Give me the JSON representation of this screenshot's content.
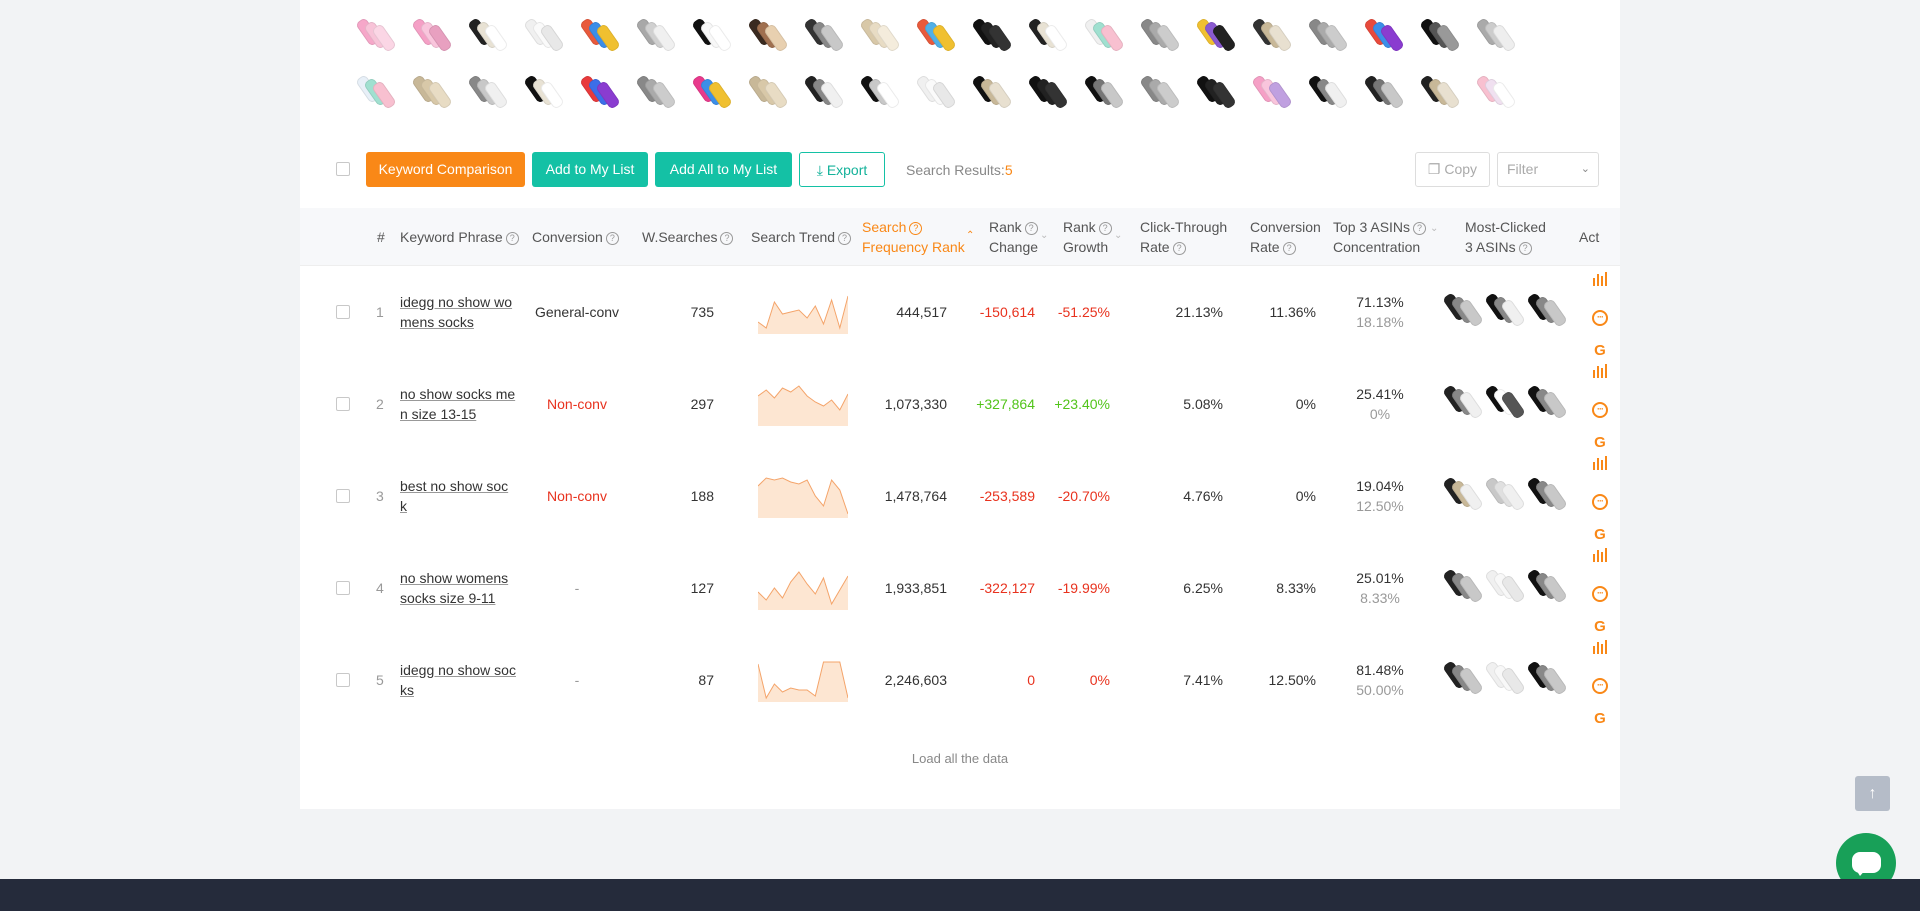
{
  "toolbar": {
    "keyword_comparison": "Keyword Comparison",
    "add_to_list": "Add to My List",
    "add_all_to_list": "Add All to My List",
    "export": "Export",
    "search_results_label": "Search Results:",
    "search_results_count": "5",
    "copy": "Copy",
    "filter_placeholder": "Filter"
  },
  "thumbnails": {
    "row1": [
      [
        "#f6a7c9",
        "#f8c3d8",
        "#fbd6e5"
      ],
      [
        "#f5a0c6",
        "#f9c5dc",
        "#e8a0c0"
      ],
      [
        "#222222",
        "#e8e2d4",
        "#ffffff"
      ],
      [
        "#f0f0f0",
        "#fafafa",
        "#e8e8e8"
      ],
      [
        "#e85a3c",
        "#3c8ee8",
        "#f0c030"
      ],
      [
        "#a8a8a8",
        "#d0d0d0",
        "#f0f0f0"
      ],
      [
        "#111111",
        "#f8f8f8",
        "#ffffff"
      ],
      [
        "#3a2a20",
        "#a07050",
        "#e8d0b0"
      ],
      [
        "#333333",
        "#888888",
        "#c8c8c8"
      ],
      [
        "#d8c8a8",
        "#e8dcc4",
        "#f4ecdc"
      ],
      [
        "#e85a3c",
        "#50b0e8",
        "#f0c030"
      ],
      [
        "#111111",
        "#222222",
        "#333333"
      ],
      [
        "#222222",
        "#e8e2d4",
        "#ffffff"
      ],
      [
        "#f0f0f0",
        "#a0e0d0",
        "#f8c0d0"
      ],
      [
        "#888888",
        "#aaaaaa",
        "#cccccc"
      ],
      [
        "#f0c030",
        "#8a5ad0",
        "#222222"
      ],
      [
        "#333333",
        "#c8b898",
        "#e8e0d0"
      ],
      [
        "#888888",
        "#aaaaaa",
        "#cccccc"
      ],
      [
        "#e84a3c",
        "#3c8ee8",
        "#8a3cd0"
      ],
      [
        "#111111",
        "#555555",
        "#999999"
      ],
      [
        "#aaaaaa",
        "#cccccc",
        "#eeeeee"
      ]
    ],
    "row2": [
      [
        "#e8f0f8",
        "#a0e0d0",
        "#f8c0d0"
      ],
      [
        "#c8b898",
        "#d8c8a8",
        "#e8dcc4"
      ],
      [
        "#888888",
        "#c8c8c8",
        "#f0f0f0"
      ],
      [
        "#111111",
        "#e8e2d4",
        "#ffffff"
      ],
      [
        "#e83a3c",
        "#3c6ee8",
        "#8a3cd0"
      ],
      [
        "#888888",
        "#aaaaaa",
        "#cccccc"
      ],
      [
        "#e83a8c",
        "#3c8ee8",
        "#f0c030"
      ],
      [
        "#c8b898",
        "#d8c8a8",
        "#e8dcc4"
      ],
      [
        "#222222",
        "#888888",
        "#f0f0f0"
      ],
      [
        "#111111",
        "#c8c8c8",
        "#ffffff"
      ],
      [
        "#f0f0f0",
        "#fafafa",
        "#e8e8e8"
      ],
      [
        "#111111",
        "#c8b898",
        "#e8e0d0"
      ],
      [
        "#111111",
        "#222222",
        "#333333"
      ],
      [
        "#111111",
        "#777777",
        "#c8c8c8"
      ],
      [
        "#888888",
        "#aaaaaa",
        "#cccccc"
      ],
      [
        "#111111",
        "#222222",
        "#333333"
      ],
      [
        "#f5a0c6",
        "#f9c5dc",
        "#c0a0e0"
      ],
      [
        "#111111",
        "#888888",
        "#f0f0f0"
      ],
      [
        "#222222",
        "#777777",
        "#c8c8c8"
      ],
      [
        "#222222",
        "#c8b898",
        "#e8e0d0"
      ],
      [
        "#f8c0d0",
        "#f0e0f0",
        "#ffffff"
      ]
    ]
  },
  "table": {
    "headers": {
      "num": "#",
      "keyword": "Keyword Phrase",
      "conversion": "Conversion",
      "wsearches": "W.Searches",
      "trend": "Search Trend",
      "sfr_line1": "Search",
      "sfr_line2": "Frequency Rank",
      "rank_change_1": "Rank",
      "rank_change_2": "Change",
      "rank_growth_1": "Rank",
      "rank_growth_2": "Growth",
      "ctr_1": "Click-Through",
      "ctr_2": "Rate",
      "cr_1": "Conversion",
      "cr_2": "Rate",
      "top3_1": "Top 3 ASINs",
      "top3_2": "Concentration",
      "most_1": "Most-Clicked",
      "most_2": "3 ASINs",
      "act": "Act"
    },
    "rows": [
      {
        "num": "1",
        "kw1": "idegg no show wo",
        "kw2": "mens socks",
        "conversion": "General-conv",
        "conv_style": "normal",
        "wsearches": "735",
        "trend": [
          30,
          36,
          10,
          22,
          20,
          18,
          26,
          14,
          32,
          8,
          36,
          4
        ],
        "sfr": "444,517",
        "rank_change": "-150,614",
        "rank_change_style": "red",
        "rank_growth": "-51.25%",
        "rank_growth_style": "red",
        "ctr": "21.13%",
        "cr": "11.36%",
        "top3": "71.13%",
        "top3_sub": "18.18%",
        "asins": [
          [
            "#222222",
            "#888888",
            "#c8c8c8"
          ],
          [
            "#111111",
            "#888888",
            "#f0f0f0"
          ],
          [
            "#111111",
            "#888888",
            "#c8c8c8"
          ]
        ]
      },
      {
        "num": "2",
        "kw1": "no show socks me",
        "kw2": "n size 13-15",
        "conversion": "Non-conv",
        "conv_style": "red",
        "wsearches": "297",
        "trend": [
          12,
          6,
          14,
          4,
          8,
          2,
          12,
          18,
          22,
          16,
          26,
          10
        ],
        "sfr": "1,073,330",
        "rank_change": "+327,864",
        "rank_change_style": "green",
        "rank_growth": "+23.40%",
        "rank_growth_style": "green",
        "ctr": "5.08%",
        "cr": "0%",
        "top3": "25.41%",
        "top3_sub": "0%",
        "asins": [
          [
            "#222222",
            "#888888",
            "#f0f0f0"
          ],
          [
            "#111111",
            "#ffffff",
            "#555555"
          ],
          [
            "#111111",
            "#888888",
            "#c8c8c8"
          ]
        ]
      },
      {
        "num": "3",
        "kw1": "best no show soc",
        "kw2": "k",
        "conversion": "Non-conv",
        "conv_style": "red",
        "wsearches": "188",
        "trend": [
          10,
          2,
          4,
          2,
          6,
          8,
          4,
          20,
          30,
          4,
          14,
          38
        ],
        "sfr": "1,478,764",
        "rank_change": "-253,589",
        "rank_change_style": "red",
        "rank_growth": "-20.70%",
        "rank_growth_style": "red",
        "ctr": "4.76%",
        "cr": "0%",
        "top3": "19.04%",
        "top3_sub": "12.50%",
        "asins": [
          [
            "#222222",
            "#c8b898",
            "#f0f0f0"
          ],
          [
            "#c8c8c8",
            "#e0e0e0",
            "#f0f0f0"
          ],
          [
            "#111111",
            "#888888",
            "#c8c8c8"
          ]
        ]
      },
      {
        "num": "4",
        "kw1": "no show womens",
        "kw2": "socks size 9-11",
        "conversion": "-",
        "conv_style": "muted",
        "wsearches": "127",
        "trend": [
          24,
          32,
          20,
          30,
          14,
          4,
          16,
          26,
          10,
          36,
          22,
          8
        ],
        "sfr": "1,933,851",
        "rank_change": "-322,127",
        "rank_change_style": "red",
        "rank_growth": "-19.99%",
        "rank_growth_style": "red",
        "ctr": "6.25%",
        "cr": "8.33%",
        "top3": "25.01%",
        "top3_sub": "8.33%",
        "asins": [
          [
            "#222222",
            "#888888",
            "#c8c8c8"
          ],
          [
            "#f0f0f0",
            "#f8f8f8",
            "#e8e8e8"
          ],
          [
            "#111111",
            "#888888",
            "#c8c8c8"
          ]
        ]
      },
      {
        "num": "5",
        "kw1": "idegg no show soc",
        "kw2": "ks",
        "conversion": "-",
        "conv_style": "muted",
        "wsearches": "87",
        "trend": [
          4,
          38,
          24,
          32,
          28,
          30,
          30,
          36,
          2,
          2,
          2,
          38
        ],
        "sfr": "2,246,603",
        "rank_change": "0",
        "rank_change_style": "red",
        "rank_growth": "0%",
        "rank_growth_style": "red",
        "ctr": "7.41%",
        "cr": "12.50%",
        "top3": "81.48%",
        "top3_sub": "50.00%",
        "asins": [
          [
            "#222222",
            "#888888",
            "#c8c8c8"
          ],
          [
            "#f0f0f0",
            "#f8f8f8",
            "#e8e8e8"
          ],
          [
            "#111111",
            "#888888",
            "#c8c8c8"
          ]
        ]
      }
    ]
  },
  "load_all": "Load all the data",
  "icons": {
    "download": "download-icon",
    "copy": "copy-icon",
    "chevron": "chevron-down-icon",
    "chart": "bar-chart-icon",
    "more": "more-circle-icon",
    "google": "google-icon",
    "arrow_up": "arrow-up-icon",
    "chat": "chat-icon"
  },
  "colors": {
    "accent_orange": "#f98817",
    "accent_green": "#14c1a5",
    "negative": "#e8321e",
    "positive": "#52c41a",
    "chat": "#18a058"
  }
}
